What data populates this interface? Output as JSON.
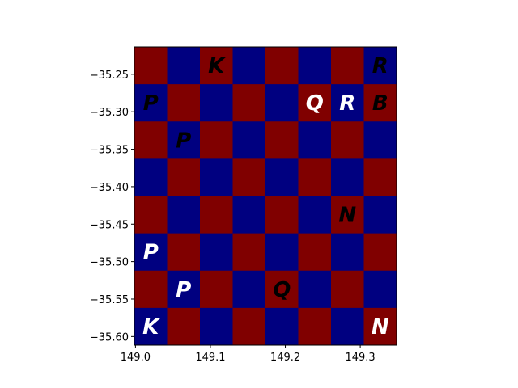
{
  "chart_data": {
    "type": "heatmap",
    "title": "",
    "xlabel": "",
    "ylabel": "",
    "xlim": [
      148.9985,
      149.3485
    ],
    "ylim": [
      -35.6115,
      -35.2135
    ],
    "x_ticks": [
      149.0,
      149.1,
      149.2,
      149.3
    ],
    "x_tick_labels": [
      "149.0",
      "149.1",
      "149.2",
      "149.3"
    ],
    "y_ticks": [
      -35.25,
      -35.3,
      -35.35,
      -35.4,
      -35.45,
      -35.5,
      -35.55,
      -35.6
    ],
    "y_tick_labels": [
      "−35.25",
      "−35.30",
      "−35.35",
      "−35.40",
      "−35.45",
      "−35.50",
      "−35.55",
      "−35.60"
    ],
    "board": {
      "rows": 8,
      "cols": 8,
      "light_color": "#800000",
      "dark_color": "#000080",
      "top_left_is_light": true
    },
    "pieces": [
      {
        "symbol": "K",
        "color": "black",
        "row": 0,
        "col": 2
      },
      {
        "symbol": "R",
        "color": "black",
        "row": 0,
        "col": 7
      },
      {
        "symbol": "P",
        "color": "black",
        "row": 1,
        "col": 0
      },
      {
        "symbol": "Q",
        "color": "white",
        "row": 1,
        "col": 5
      },
      {
        "symbol": "R",
        "color": "white",
        "row": 1,
        "col": 6
      },
      {
        "symbol": "B",
        "color": "black",
        "row": 1,
        "col": 7
      },
      {
        "symbol": "P",
        "color": "black",
        "row": 2,
        "col": 1
      },
      {
        "symbol": "N",
        "color": "black",
        "row": 4,
        "col": 6
      },
      {
        "symbol": "P",
        "color": "white",
        "row": 5,
        "col": 0
      },
      {
        "symbol": "P",
        "color": "white",
        "row": 6,
        "col": 1
      },
      {
        "symbol": "Q",
        "color": "black",
        "row": 6,
        "col": 4
      },
      {
        "symbol": "K",
        "color": "white",
        "row": 7,
        "col": 0
      },
      {
        "symbol": "N",
        "color": "white",
        "row": 7,
        "col": 7
      }
    ]
  }
}
